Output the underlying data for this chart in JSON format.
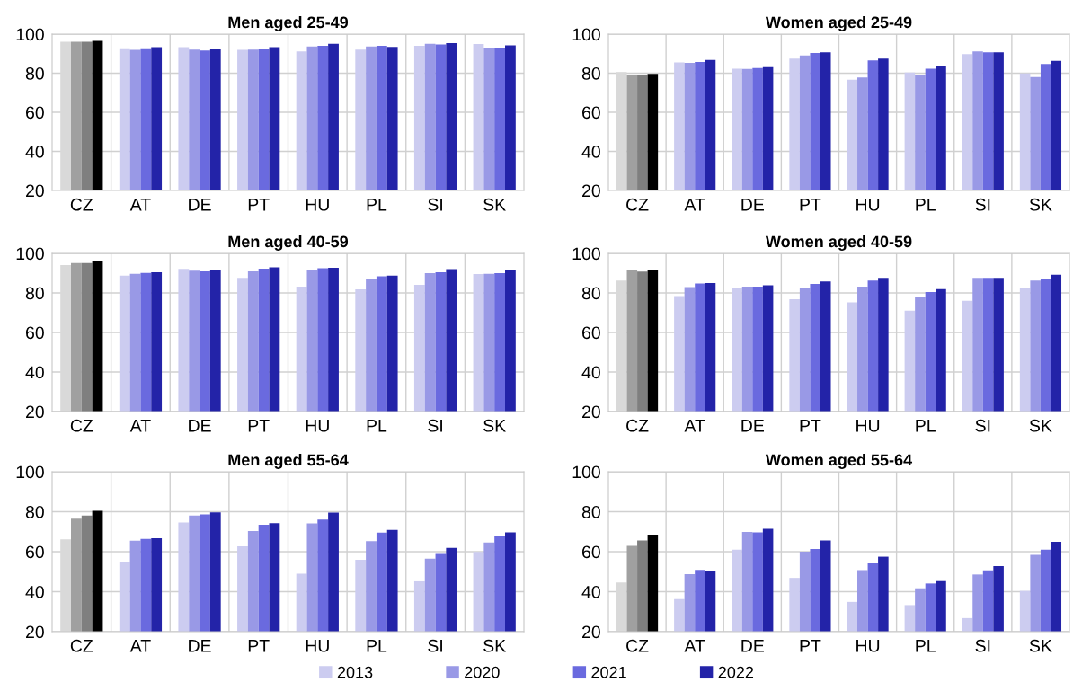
{
  "chart_data": [
    {
      "type": "bar",
      "title": "Men aged 25-49",
      "categories": [
        "CZ",
        "AT",
        "DE",
        "PT",
        "HU",
        "PL",
        "SI",
        "SK"
      ],
      "ylim": [
        20,
        100
      ],
      "yticks": [
        20,
        40,
        60,
        80,
        100
      ],
      "grid": true,
      "legend": "bottom",
      "series": [
        {
          "name": "2013",
          "color": "#ccccf0",
          "colors": [
            "#d9d9d9",
            "#ccccf0",
            "#ccccf0",
            "#ccccf0",
            "#ccccf0",
            "#ccccf0",
            "#ccccf0",
            "#ccccf0"
          ],
          "values": [
            96.1,
            92.8,
            93.3,
            91.9,
            91.2,
            92.1,
            94.0,
            94.9
          ]
        },
        {
          "name": "2020",
          "color": "#9999e6",
          "colors": [
            "#a0a0a0",
            "#9999e6",
            "#9999e6",
            "#9999e6",
            "#9999e6",
            "#9999e6",
            "#9999e6",
            "#9999e6"
          ],
          "values": [
            96.1,
            91.9,
            92.1,
            92.1,
            93.7,
            93.7,
            95.1,
            93.1
          ]
        },
        {
          "name": "2021",
          "color": "#6a6adf",
          "colors": [
            "#7f7f7f",
            "#6a6adf",
            "#6a6adf",
            "#6a6adf",
            "#6a6adf",
            "#6a6adf",
            "#6a6adf",
            "#6a6adf"
          ],
          "values": [
            96.1,
            92.8,
            91.6,
            92.3,
            94.0,
            94.0,
            94.7,
            93.1
          ]
        },
        {
          "name": "2022",
          "color": "#2323a8",
          "colors": [
            "#000000",
            "#2323a8",
            "#2323a8",
            "#2323a8",
            "#2323a8",
            "#2323a8",
            "#2323a8",
            "#2323a8"
          ],
          "values": [
            96.6,
            93.3,
            92.6,
            93.3,
            95.1,
            93.5,
            95.4,
            94.2
          ]
        }
      ]
    },
    {
      "type": "bar",
      "title": "Women aged 25-49",
      "categories": [
        "CZ",
        "AT",
        "DE",
        "PT",
        "HU",
        "PL",
        "SI",
        "SK"
      ],
      "ylim": [
        20,
        100
      ],
      "yticks": [
        20,
        40,
        60,
        80,
        100
      ],
      "grid": true,
      "series": [
        {
          "name": "2013",
          "color": "#ccccf0",
          "colors": [
            "#d9d9d9",
            "#ccccf0",
            "#ccccf0",
            "#ccccf0",
            "#ccccf0",
            "#ccccf0",
            "#ccccf0",
            "#ccccf0"
          ],
          "values": [
            80.6,
            85.5,
            82.3,
            87.5,
            76.7,
            80.4,
            89.8,
            79.9
          ]
        },
        {
          "name": "2020",
          "color": "#9999e6",
          "colors": [
            "#a0a0a0",
            "#9999e6",
            "#9999e6",
            "#9999e6",
            "#9999e6",
            "#9999e6",
            "#9999e6",
            "#9999e6"
          ],
          "values": [
            79.2,
            85.3,
            82.2,
            89.1,
            77.8,
            79.2,
            91.2,
            78.1
          ]
        },
        {
          "name": "2021",
          "color": "#6a6adf",
          "colors": [
            "#7f7f7f",
            "#6a6adf",
            "#6a6adf",
            "#6a6adf",
            "#6a6adf",
            "#6a6adf",
            "#6a6adf",
            "#6a6adf"
          ],
          "values": [
            79.2,
            85.7,
            82.7,
            90.3,
            86.6,
            82.3,
            90.7,
            84.7
          ]
        },
        {
          "name": "2022",
          "color": "#2323a8",
          "colors": [
            "#000000",
            "#2323a8",
            "#2323a8",
            "#2323a8",
            "#2323a8",
            "#2323a8",
            "#2323a8",
            "#2323a8"
          ],
          "values": [
            79.7,
            86.8,
            83.1,
            90.7,
            87.5,
            83.8,
            90.7,
            86.3
          ]
        }
      ]
    },
    {
      "type": "bar",
      "title": "Men aged 40-59",
      "categories": [
        "CZ",
        "AT",
        "DE",
        "PT",
        "HU",
        "PL",
        "SI",
        "SK"
      ],
      "ylim": [
        20,
        100
      ],
      "yticks": [
        20,
        40,
        60,
        80,
        100
      ],
      "grid": true,
      "series": [
        {
          "name": "2013",
          "color": "#ccccf0",
          "colors": [
            "#d9d9d9",
            "#ccccf0",
            "#ccccf0",
            "#ccccf0",
            "#ccccf0",
            "#ccccf0",
            "#ccccf0",
            "#ccccf0"
          ],
          "values": [
            94.1,
            88.8,
            92.2,
            87.6,
            83.2,
            81.8,
            84.1,
            89.5
          ]
        },
        {
          "name": "2020",
          "color": "#9999e6",
          "colors": [
            "#a0a0a0",
            "#9999e6",
            "#9999e6",
            "#9999e6",
            "#9999e6",
            "#9999e6",
            "#9999e6",
            "#9999e6"
          ],
          "values": [
            95.1,
            89.7,
            91.3,
            90.9,
            91.7,
            87.1,
            90.0,
            89.7
          ]
        },
        {
          "name": "2021",
          "color": "#6a6adf",
          "colors": [
            "#7f7f7f",
            "#6a6adf",
            "#6a6adf",
            "#6a6adf",
            "#6a6adf",
            "#6a6adf",
            "#6a6adf",
            "#6a6adf"
          ],
          "values": [
            95.1,
            90.1,
            90.9,
            92.3,
            92.5,
            88.4,
            90.4,
            90.0
          ]
        },
        {
          "name": "2022",
          "color": "#2323a8",
          "colors": [
            "#000000",
            "#2323a8",
            "#2323a8",
            "#2323a8",
            "#2323a8",
            "#2323a8",
            "#2323a8",
            "#2323a8"
          ],
          "values": [
            96.0,
            90.4,
            91.6,
            92.9,
            92.7,
            88.7,
            92.1,
            91.6
          ]
        }
      ]
    },
    {
      "type": "bar",
      "title": "Women aged 40-59",
      "categories": [
        "CZ",
        "AT",
        "DE",
        "PT",
        "HU",
        "PL",
        "SI",
        "SK"
      ],
      "ylim": [
        20,
        100
      ],
      "yticks": [
        20,
        40,
        60,
        80,
        100
      ],
      "grid": true,
      "series": [
        {
          "name": "2013",
          "color": "#ccccf0",
          "colors": [
            "#d9d9d9",
            "#ccccf0",
            "#ccccf0",
            "#ccccf0",
            "#ccccf0",
            "#ccccf0",
            "#ccccf0",
            "#ccccf0"
          ],
          "values": [
            86.2,
            78.4,
            82.3,
            76.8,
            75.2,
            71.0,
            76.0,
            82.3
          ]
        },
        {
          "name": "2020",
          "color": "#9999e6",
          "colors": [
            "#a0a0a0",
            "#9999e6",
            "#9999e6",
            "#9999e6",
            "#9999e6",
            "#9999e6",
            "#9999e6",
            "#9999e6"
          ],
          "values": [
            91.7,
            83.0,
            83.2,
            82.7,
            83.2,
            78.2,
            87.6,
            86.2
          ]
        },
        {
          "name": "2021",
          "color": "#6a6adf",
          "colors": [
            "#7f7f7f",
            "#6a6adf",
            "#6a6adf",
            "#6a6adf",
            "#6a6adf",
            "#6a6adf",
            "#6a6adf",
            "#6a6adf"
          ],
          "values": [
            90.8,
            84.8,
            83.2,
            84.6,
            86.2,
            80.5,
            87.6,
            87.3
          ]
        },
        {
          "name": "2022",
          "color": "#2323a8",
          "colors": [
            "#000000",
            "#2323a8",
            "#2323a8",
            "#2323a8",
            "#2323a8",
            "#2323a8",
            "#2323a8",
            "#2323a8"
          ],
          "values": [
            91.7,
            85.0,
            83.9,
            85.8,
            87.6,
            81.9,
            87.6,
            89.2
          ]
        }
      ]
    },
    {
      "type": "bar",
      "title": "Men aged 55-64",
      "categories": [
        "CZ",
        "AT",
        "DE",
        "PT",
        "HU",
        "PL",
        "SI",
        "SK"
      ],
      "ylim": [
        20,
        100
      ],
      "yticks": [
        20,
        40,
        60,
        80,
        100
      ],
      "grid": true,
      "series": [
        {
          "name": "2013",
          "color": "#ccccf0",
          "colors": [
            "#d9d9d9",
            "#ccccf0",
            "#ccccf0",
            "#ccccf0",
            "#ccccf0",
            "#ccccf0",
            "#ccccf0",
            "#ccccf0"
          ],
          "values": [
            66.2,
            55.1,
            74.6,
            62.7,
            49.0,
            55.9,
            45.2,
            59.9
          ]
        },
        {
          "name": "2020",
          "color": "#9999e6",
          "colors": [
            "#a0a0a0",
            "#9999e6",
            "#9999e6",
            "#9999e6",
            "#9999e6",
            "#9999e6",
            "#9999e6",
            "#9999e6"
          ],
          "values": [
            76.5,
            65.5,
            78.1,
            70.3,
            74.2,
            65.3,
            56.5,
            64.6
          ]
        },
        {
          "name": "2021",
          "color": "#6a6adf",
          "colors": [
            "#7f7f7f",
            "#6a6adf",
            "#6a6adf",
            "#6a6adf",
            "#6a6adf",
            "#6a6adf",
            "#6a6adf",
            "#6a6adf"
          ],
          "values": [
            78.1,
            66.4,
            78.6,
            73.5,
            76.1,
            69.5,
            59.3,
            67.7
          ]
        },
        {
          "name": "2022",
          "color": "#2323a8",
          "colors": [
            "#000000",
            "#2323a8",
            "#2323a8",
            "#2323a8",
            "#2323a8",
            "#2323a8",
            "#2323a8",
            "#2323a8"
          ],
          "values": [
            80.5,
            66.7,
            79.7,
            74.3,
            79.5,
            70.9,
            61.9,
            69.7
          ]
        }
      ]
    },
    {
      "type": "bar",
      "title": "Women aged 55-64",
      "categories": [
        "CZ",
        "AT",
        "DE",
        "PT",
        "HU",
        "PL",
        "SI",
        "SK"
      ],
      "ylim": [
        20,
        100
      ],
      "yticks": [
        20,
        40,
        60,
        80,
        100
      ],
      "grid": true,
      "series": [
        {
          "name": "2013",
          "color": "#ccccf0",
          "colors": [
            "#d9d9d9",
            "#ccccf0",
            "#ccccf0",
            "#ccccf0",
            "#ccccf0",
            "#ccccf0",
            "#ccccf0",
            "#ccccf0"
          ],
          "values": [
            44.6,
            36.3,
            61.0,
            46.9,
            34.9,
            33.3,
            26.8,
            40.4
          ]
        },
        {
          "name": "2020",
          "color": "#9999e6",
          "colors": [
            "#a0a0a0",
            "#9999e6",
            "#9999e6",
            "#9999e6",
            "#9999e6",
            "#9999e6",
            "#9999e6",
            "#9999e6"
          ],
          "values": [
            62.9,
            48.8,
            69.9,
            60.0,
            50.8,
            41.7,
            48.6,
            58.4
          ]
        },
        {
          "name": "2021",
          "color": "#6a6adf",
          "colors": [
            "#7f7f7f",
            "#6a6adf",
            "#6a6adf",
            "#6a6adf",
            "#6a6adf",
            "#6a6adf",
            "#6a6adf",
            "#6a6adf"
          ],
          "values": [
            65.6,
            50.9,
            69.7,
            61.4,
            54.4,
            44.1,
            50.7,
            61.0
          ]
        },
        {
          "name": "2022",
          "color": "#2323a8",
          "colors": [
            "#000000",
            "#2323a8",
            "#2323a8",
            "#2323a8",
            "#2323a8",
            "#2323a8",
            "#2323a8",
            "#2323a8"
          ],
          "values": [
            68.5,
            50.6,
            71.5,
            65.6,
            57.5,
            45.3,
            52.8,
            65.0
          ]
        }
      ]
    }
  ]
}
